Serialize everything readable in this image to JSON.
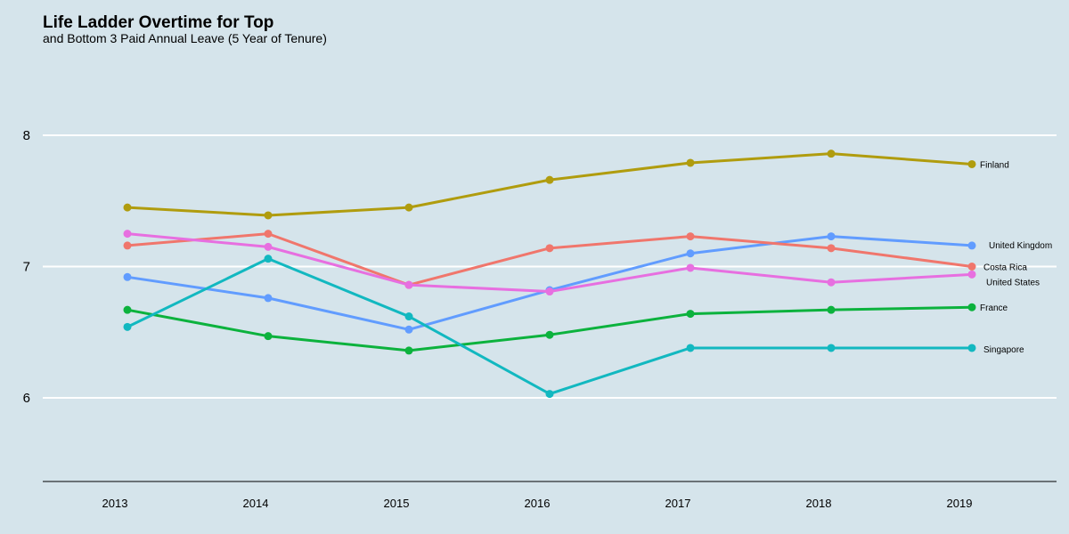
{
  "header": {
    "title": "Life Ladder Overtime for Top",
    "subtitle": "and Bottom 3 Paid Annual Leave (5 Year of Tenure)"
  },
  "chart_data": {
    "type": "line",
    "title": "Life Ladder Overtime for Top",
    "subtitle": "and Bottom 3 Paid Annual Leave (5 Year of Tenure)",
    "xlabel": "",
    "ylabel": "",
    "x": [
      2013,
      2014,
      2015,
      2016,
      2017,
      2018,
      2019
    ],
    "ylim": [
      5.36,
      8.6
    ],
    "yticks": [
      6,
      7,
      8
    ],
    "grid": "horizontal major lines",
    "legend": "direct labels at right end of each line",
    "series": [
      {
        "name": "Finland",
        "color": "#b09c0e",
        "values": [
          7.45,
          7.39,
          7.45,
          7.66,
          7.79,
          7.86,
          7.78
        ]
      },
      {
        "name": "United Kingdom",
        "color": "#619cff",
        "values": [
          6.92,
          6.76,
          6.52,
          6.82,
          7.1,
          7.23,
          7.16
        ]
      },
      {
        "name": "Costa Rica",
        "color": "#f0766c",
        "values": [
          7.16,
          7.25,
          6.86,
          7.14,
          7.23,
          7.14,
          7.0
        ]
      },
      {
        "name": "United States",
        "color": "#e76fe0",
        "values": [
          7.25,
          7.15,
          6.86,
          6.81,
          6.99,
          6.88,
          6.94
        ]
      },
      {
        "name": "France",
        "color": "#0cb23d",
        "values": [
          6.67,
          6.47,
          6.36,
          6.48,
          6.64,
          6.67,
          6.69
        ]
      },
      {
        "name": "Singapore",
        "color": "#12b8c0",
        "values": [
          6.54,
          7.06,
          6.62,
          6.03,
          6.38,
          6.38,
          6.38
        ]
      }
    ]
  }
}
